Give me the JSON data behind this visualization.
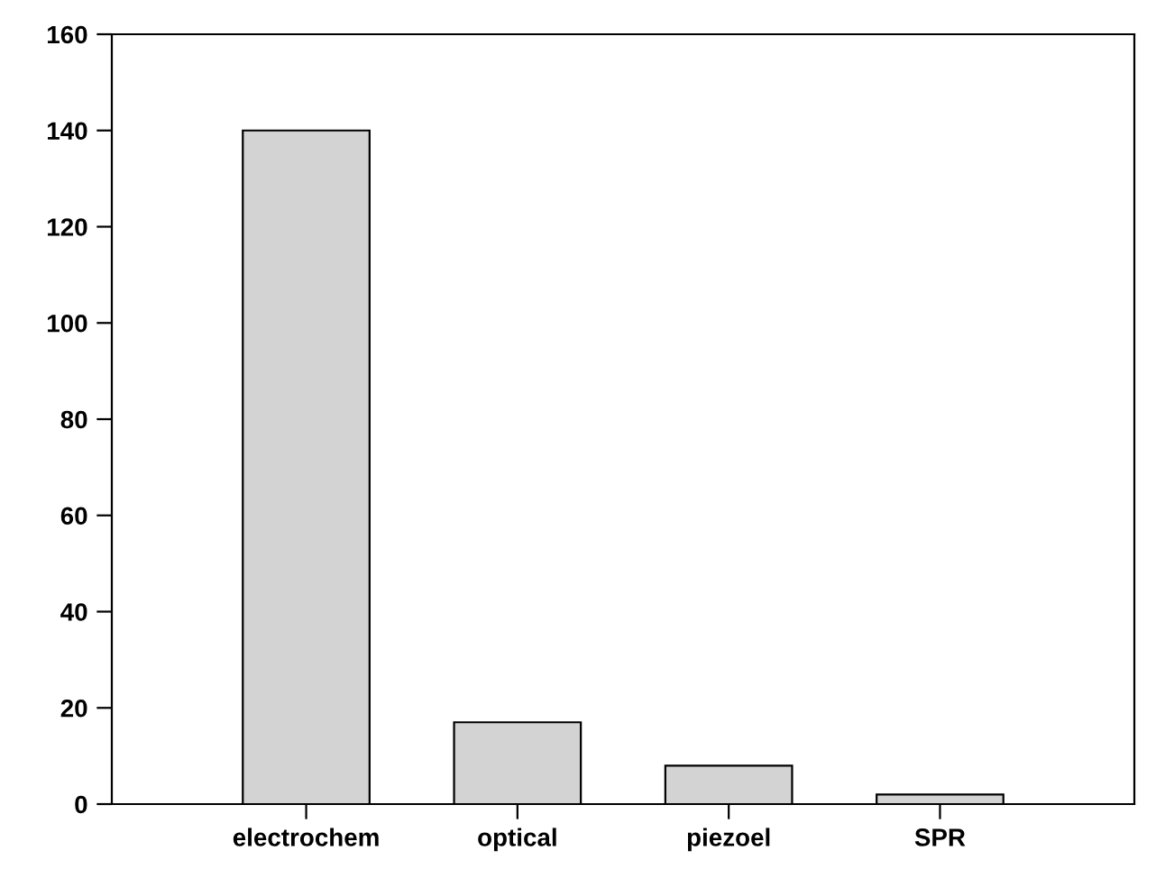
{
  "chart_data": {
    "type": "bar",
    "categories": [
      "electrochem",
      "optical",
      "piezoel",
      "SPR"
    ],
    "values": [
      140,
      17,
      8,
      2
    ],
    "color": "#d3d3d3",
    "ylim": [
      0,
      160
    ],
    "yticks": [
      0,
      20,
      40,
      60,
      80,
      100,
      120,
      140,
      160
    ],
    "grid": false,
    "legend": false
  }
}
